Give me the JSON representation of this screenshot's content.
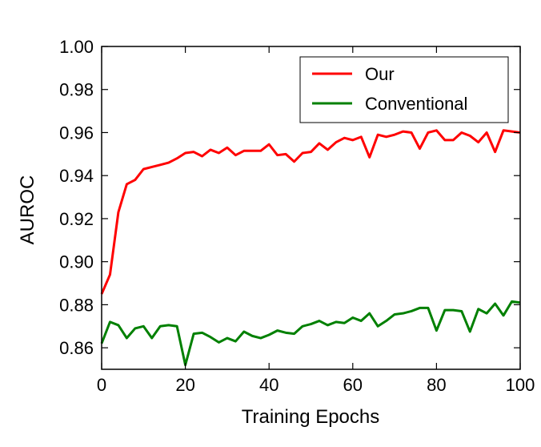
{
  "chart_data": {
    "type": "line",
    "title": "",
    "xlabel": "Training Epochs",
    "ylabel": "AUROC",
    "xlim": [
      0,
      100
    ],
    "ylim": [
      0.85,
      1.0
    ],
    "xticks": [
      0,
      20,
      40,
      60,
      80,
      100
    ],
    "yticks": [
      0.86,
      0.88,
      0.9,
      0.92,
      0.94,
      0.96,
      0.98,
      1.0
    ],
    "xtick_labels": [
      "0",
      "20",
      "40",
      "60",
      "80",
      "100"
    ],
    "ytick_labels": [
      "0.86",
      "0.88",
      "0.90",
      "0.92",
      "0.94",
      "0.96",
      "0.98",
      "1.00"
    ],
    "grid": false,
    "legend_position": "top-right",
    "x": [
      0,
      2,
      4,
      6,
      8,
      10,
      12,
      14,
      16,
      18,
      20,
      22,
      24,
      26,
      28,
      30,
      32,
      34,
      36,
      38,
      40,
      42,
      44,
      46,
      48,
      50,
      52,
      54,
      56,
      58,
      60,
      62,
      64,
      66,
      68,
      70,
      72,
      74,
      76,
      78,
      80,
      82,
      84,
      86,
      88,
      90,
      92,
      94,
      96,
      98,
      100
    ],
    "series": [
      {
        "name": "Our",
        "color": "#ff0000",
        "values": [
          0.885,
          0.894,
          0.923,
          0.936,
          0.938,
          0.943,
          0.944,
          0.945,
          0.946,
          0.948,
          0.9505,
          0.951,
          0.949,
          0.952,
          0.9505,
          0.953,
          0.9495,
          0.9515,
          0.9515,
          0.9515,
          0.9545,
          0.9495,
          0.95,
          0.9465,
          0.9505,
          0.951,
          0.955,
          0.952,
          0.9555,
          0.9575,
          0.9565,
          0.958,
          0.9485,
          0.959,
          0.958,
          0.959,
          0.9605,
          0.96,
          0.9525,
          0.96,
          0.961,
          0.9565,
          0.9565,
          0.96,
          0.9585,
          0.9555,
          0.96,
          0.951,
          0.961,
          0.9605,
          0.96
        ]
      },
      {
        "name": "Conventional",
        "color": "#008000",
        "values": [
          0.862,
          0.872,
          0.8705,
          0.8645,
          0.869,
          0.87,
          0.8645,
          0.87,
          0.8705,
          0.87,
          0.852,
          0.8665,
          0.867,
          0.865,
          0.8625,
          0.8645,
          0.863,
          0.8675,
          0.8655,
          0.8645,
          0.866,
          0.868,
          0.867,
          0.8665,
          0.87,
          0.871,
          0.8725,
          0.8705,
          0.872,
          0.8715,
          0.874,
          0.8725,
          0.876,
          0.87,
          0.8725,
          0.8755,
          0.876,
          0.877,
          0.8785,
          0.8785,
          0.868,
          0.8775,
          0.8775,
          0.877,
          0.8675,
          0.878,
          0.876,
          0.8805,
          0.875,
          0.8815,
          0.881
        ]
      }
    ]
  }
}
